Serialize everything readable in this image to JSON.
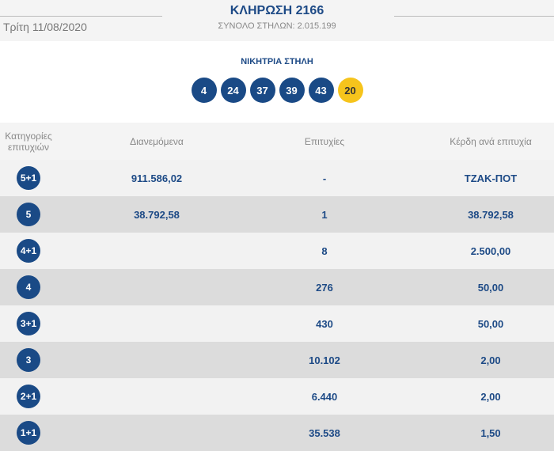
{
  "header": {
    "date": "Τρίτη 11/08/2020",
    "title": "ΚΛΗΡΩΣΗ 2166",
    "total": "ΣΥΝΟΛΟ ΣΤΗΛΩΝ: 2.015.199",
    "winning_label": "ΝΙΚΗΤΡΙΑ ΣΤΗΛΗ",
    "numbers": [
      "4",
      "24",
      "37",
      "39",
      "43"
    ],
    "bonus": "20",
    "colors": {
      "ball": "#1a4a86",
      "bonus": "#f6c41c"
    }
  },
  "table": {
    "headers": [
      "Κατηγορίες επιτυχιών",
      "Διανεμόμενα",
      "Επιτυχίες",
      "Κέρδη ανά επιτυχία"
    ],
    "rows": [
      {
        "cat": "5+1",
        "dist": "911.586,02",
        "wins": "-",
        "prize": "ΤΖΑΚ-ΠΟΤ"
      },
      {
        "cat": "5",
        "dist": "38.792,58",
        "wins": "1",
        "prize": "38.792,58"
      },
      {
        "cat": "4+1",
        "dist": "",
        "wins": "8",
        "prize": "2.500,00"
      },
      {
        "cat": "4",
        "dist": "",
        "wins": "276",
        "prize": "50,00"
      },
      {
        "cat": "3+1",
        "dist": "",
        "wins": "430",
        "prize": "50,00"
      },
      {
        "cat": "3",
        "dist": "",
        "wins": "10.102",
        "prize": "2,00"
      },
      {
        "cat": "2+1",
        "dist": "",
        "wins": "6.440",
        "prize": "2,00"
      },
      {
        "cat": "1+1",
        "dist": "",
        "wins": "35.538",
        "prize": "1,50"
      }
    ]
  }
}
